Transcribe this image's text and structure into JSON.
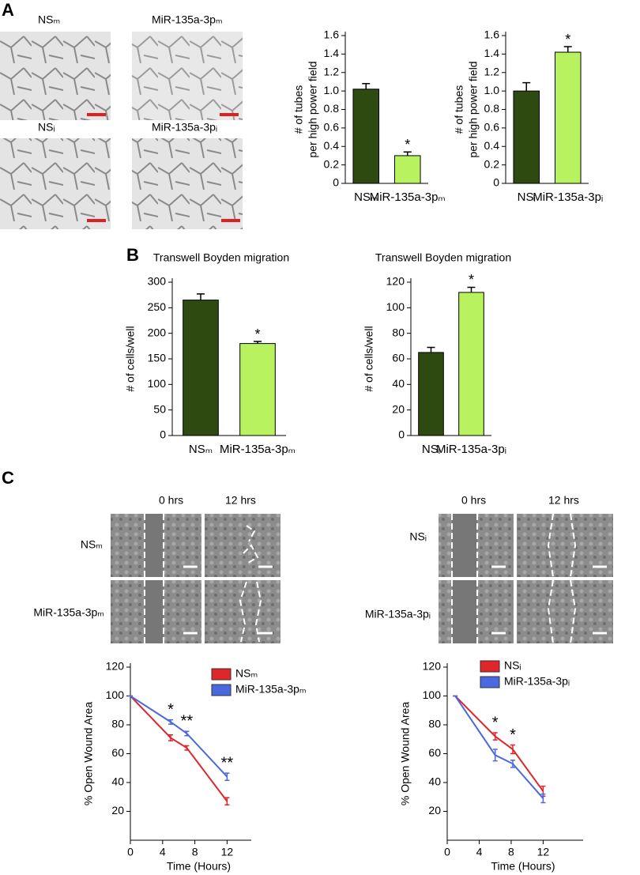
{
  "panel_labels": [
    "A",
    "B",
    "C"
  ],
  "micrograph_labels": [
    "NSₘ",
    "MiR-135a-3pₘ",
    "NSᵢ",
    "MiR-135a-3pᵢ"
  ],
  "wound_time_labels": [
    "0 hrs",
    "12 hrs"
  ],
  "wound_row_labels_left": [
    "NSₘ",
    "MiR-135a-3pₘ"
  ],
  "wound_row_labels_right": [
    "NSᵢ",
    "MiR-135a-3pᵢ"
  ],
  "chart_data": [
    {
      "type": "bar",
      "ylabel": [
        "# of tubes",
        "per high power field"
      ],
      "categories": [
        "NSₘ",
        "MiR-135a-3pₘ"
      ],
      "values": [
        1.02,
        0.3
      ],
      "errors": [
        0.06,
        0.04
      ],
      "colors": [
        "#2e4a10",
        "#b8f25e"
      ],
      "annotations": [
        null,
        "*"
      ],
      "ylim": [
        0,
        1.6
      ],
      "yticks": [
        0,
        0.2,
        0.4,
        0.6,
        0.8,
        {
          "value": 1,
          "label": "1.0"
        },
        1.2,
        1.4,
        1.6
      ]
    },
    {
      "type": "bar",
      "ylabel": [
        "# of tubes",
        "per high power field"
      ],
      "categories": [
        "NSᵢ",
        "MiR-135a-3pᵢ"
      ],
      "values": [
        1.0,
        1.42
      ],
      "errors": [
        0.09,
        0.06
      ],
      "colors": [
        "#2e4a10",
        "#b8f25e"
      ],
      "annotations": [
        null,
        "*"
      ],
      "ylim": [
        0,
        1.6
      ],
      "yticks": [
        0,
        0.2,
        0.4,
        0.6,
        0.8,
        {
          "value": 1,
          "label": "1.0"
        },
        1.2,
        1.4,
        1.6
      ]
    },
    {
      "type": "bar",
      "title": "Transwell Boyden migration",
      "ylabel": [
        "# of cells/well"
      ],
      "categories": [
        "NSₘ",
        "MiR-135a-3pₘ"
      ],
      "values": [
        265,
        180
      ],
      "errors": [
        12,
        4
      ],
      "colors": [
        "#2e4a10",
        "#b8f25e"
      ],
      "annotations": [
        null,
        "*"
      ],
      "ylim": [
        0,
        300
      ],
      "yticks": [
        0,
        50,
        100,
        150,
        200,
        250,
        300
      ]
    },
    {
      "type": "bar",
      "title": "Transwell Boyden migration",
      "ylabel": [
        "# of cells/well"
      ],
      "categories": [
        "NSᵢ",
        "MiR-135a-3pᵢ"
      ],
      "values": [
        65,
        112
      ],
      "errors": [
        4,
        4
      ],
      "colors": [
        "#2e4a10",
        "#b8f25e"
      ],
      "annotations": [
        null,
        "*"
      ],
      "ylim": [
        0,
        120
      ],
      "yticks": [
        0,
        20,
        40,
        60,
        80,
        100,
        120
      ]
    },
    {
      "type": "line",
      "ylabel": [
        "% Open Wound Area"
      ],
      "xlabel": "Time (Hours)",
      "x": [
        0,
        5,
        7,
        12
      ],
      "series": [
        {
          "name": "NSₘ",
          "color": "#e0262b",
          "values": [
            100,
            71,
            64,
            27
          ],
          "errors": [
            0,
            2,
            1.5,
            2.5
          ]
        },
        {
          "name": "MiR-135a-3pₘ",
          "color": "#4a68e0",
          "values": [
            100,
            82,
            74,
            44
          ],
          "errors": [
            0,
            1.5,
            1.5,
            2.5
          ]
        }
      ],
      "annotations": [
        null,
        "*",
        "**",
        "**"
      ],
      "xlim": [
        0,
        15
      ],
      "xticks": [
        0,
        4,
        8,
        12
      ],
      "ylim": [
        0,
        120
      ],
      "yticks": [
        20,
        40,
        60,
        80,
        100,
        120
      ]
    },
    {
      "type": "line",
      "ylabel": [
        "% Open Wound Area"
      ],
      "xlabel": "Time (Hours)",
      "x": [
        1,
        6,
        8.2,
        12
      ],
      "series": [
        {
          "name": "NSᵢ",
          "color": "#e0262b",
          "values": [
            100,
            72,
            63,
            34
          ],
          "errors": [
            0,
            2.5,
            3,
            3.5
          ]
        },
        {
          "name": "MiR-135a-3pᵢ",
          "color": "#4a68e0",
          "values": [
            100,
            59,
            53,
            29
          ],
          "errors": [
            0,
            4,
            2.5,
            3
          ]
        }
      ],
      "annotations": [
        null,
        "*",
        "*",
        null
      ],
      "xlim": [
        0,
        17
      ],
      "xticks": [
        0,
        4,
        8,
        12
      ],
      "ylim": [
        0,
        120
      ],
      "yticks": [
        20,
        40,
        60,
        80,
        100,
        120
      ]
    }
  ]
}
